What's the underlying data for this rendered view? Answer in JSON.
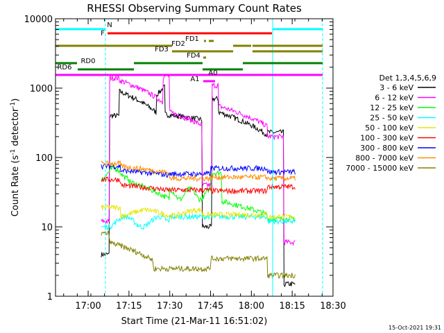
{
  "chart_data": {
    "type": "line",
    "title": "RHESSI Observing Summary Count Rates",
    "xlabel": "Start Time (21-Mar-11 16:51:02)",
    "ylabel_main": "Count Rate (s",
    "ylabel_sup1": "-1",
    "ylabel_mid": " detector",
    "ylabel_sup2": "-1",
    "ylabel_end": ")",
    "y_scale": "log",
    "ylim": [
      1,
      10000
    ],
    "xlim_minutes": [
      16.8,
      18.5
    ],
    "x_ticks": [
      {
        "t": 17.0,
        "label": "17:00"
      },
      {
        "t": 17.25,
        "label": "17:15"
      },
      {
        "t": 17.5,
        "label": "17:30"
      },
      {
        "t": 17.75,
        "label": "17:45"
      },
      {
        "t": 18.0,
        "label": "18:00"
      },
      {
        "t": 18.25,
        "label": "18:15"
      },
      {
        "t": 18.5,
        "label": "18:30"
      }
    ],
    "y_ticks": [
      {
        "v": 1,
        "label": "1"
      },
      {
        "v": 10,
        "label": "10"
      },
      {
        "v": 100,
        "label": "100"
      },
      {
        "v": 1000,
        "label": "1000"
      },
      {
        "v": 10000,
        "label": "10000"
      }
    ],
    "legend_title": "Det 1,3,4,5,6,9",
    "series": [
      {
        "name": "3 - 6 keV",
        "color": "#000000"
      },
      {
        "name": "6 - 12 keV",
        "color": "#ff00ff"
      },
      {
        "name": "12 - 25 keV",
        "color": "#00ff00"
      },
      {
        "name": "25 - 50 keV",
        "color": "#00ffff"
      },
      {
        "name": "50 - 100 keV",
        "color": "#e6e600"
      },
      {
        "name": "100 - 300 keV",
        "color": "#ff0000"
      },
      {
        "name": "300 - 800 keV",
        "color": "#0000ff"
      },
      {
        "name": "800 - 7000 keV",
        "color": "#ff8c00"
      },
      {
        "name": "7000 - 15000 keV",
        "color": "#808000"
      }
    ],
    "flags": [
      {
        "label": "N",
        "color": "#00ffff"
      },
      {
        "label": "F",
        "color": "#ff0000"
      },
      {
        "label": "FD1",
        "color": "#808000"
      },
      {
        "label": "FD2",
        "color": "#808000"
      },
      {
        "label": "FD3",
        "color": "#808000"
      },
      {
        "label": "FD4",
        "color": "#808000"
      },
      {
        "label": "RD0",
        "color": "#008000"
      },
      {
        "label": "RD6",
        "color": "#008000"
      },
      {
        "label": "A0",
        "color": "#ff00ff"
      },
      {
        "label": "A1",
        "color": "#ff00ff"
      }
    ],
    "timestamp": "15-Oct-2021 19:31"
  }
}
